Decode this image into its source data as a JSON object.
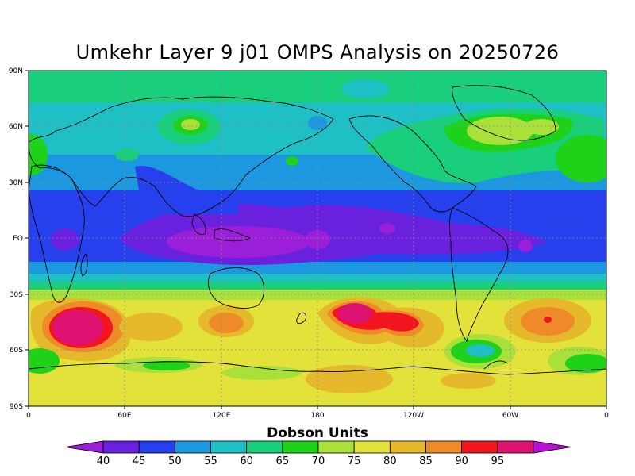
{
  "title": "Umkehr Layer 9 j01 OMPS Analysis on 20250726",
  "lat_labels": [
    "90N",
    "60N",
    "30N",
    "EQ",
    "30S",
    "60S",
    "90S"
  ],
  "lon_labels": [
    "0",
    "60E",
    "120E",
    "180",
    "120W",
    "60W",
    "0"
  ],
  "colorbar": {
    "title": "Dobson Units",
    "levels": [
      "40",
      "45",
      "50",
      "55",
      "60",
      "65",
      "70",
      "75",
      "80",
      "85",
      "90",
      "95"
    ],
    "colors": [
      "#9b1fd8",
      "#6a21dd",
      "#2740ee",
      "#1c98e0",
      "#1fc0c5",
      "#19cf7c",
      "#1ed21a",
      "#a9e03a",
      "#e2e23a",
      "#e6b82b",
      "#ee8a28",
      "#f2141e",
      "#dd1271",
      "#bb0fd6"
    ]
  }
}
